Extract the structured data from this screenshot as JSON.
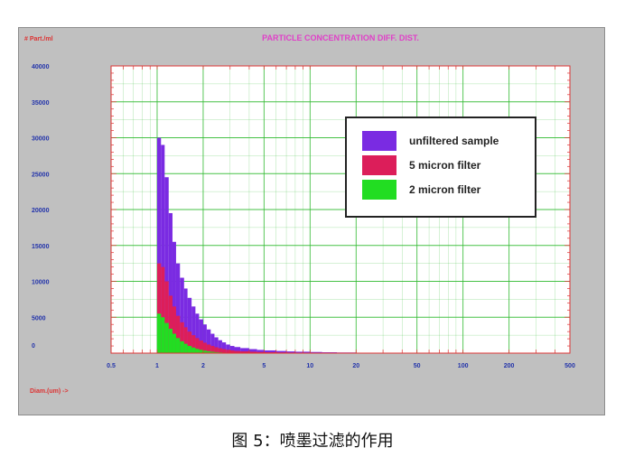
{
  "caption": "图 5：喷墨过滤的作用",
  "chart_data": {
    "type": "bar",
    "title": "PARTICLE CONCENTRATION DIFF. DIST.",
    "ylabel": "# Part./ml",
    "xlabel": "Diam.(um) ->",
    "x_scale": "log",
    "xlim": [
      0.5,
      500
    ],
    "ylim": [
      0,
      40000
    ],
    "x_tick_labels": [
      "0.5",
      "1",
      "2",
      "5",
      "10",
      "20",
      "50",
      "100",
      "200",
      "500"
    ],
    "y_tick_labels": [
      "0",
      "5000",
      "10000",
      "15000",
      "20000",
      "25000",
      "30000",
      "35000",
      "40000"
    ],
    "grid": true,
    "legend_position": "top-right",
    "x": [
      1.0,
      1.06,
      1.12,
      1.19,
      1.26,
      1.33,
      1.41,
      1.5,
      1.58,
      1.68,
      1.78,
      1.88,
      2.0,
      2.11,
      2.24,
      2.37,
      2.51,
      2.66,
      2.82,
      3.0,
      3.2,
      3.5,
      4.0,
      4.5,
      5.0,
      6.0,
      7.0,
      8.0,
      10.0,
      12.0,
      15.0,
      20.0,
      25.0,
      30.0,
      40.0
    ],
    "series": [
      {
        "name": "unfiltered sample",
        "color": "#7a2be2",
        "values": [
          30000,
          29000,
          24500,
          19500,
          15500,
          12500,
          10500,
          9000,
          7700,
          6500,
          5500,
          4700,
          4000,
          3300,
          2700,
          2200,
          1800,
          1500,
          1200,
          1000,
          850,
          700,
          560,
          450,
          380,
          300,
          240,
          200,
          160,
          120,
          90,
          60,
          40,
          25,
          12
        ]
      },
      {
        "name": "5 micron filter",
        "color": "#dc1e5a",
        "values": [
          12500,
          12000,
          10000,
          8000,
          6500,
          5200,
          4300,
          3600,
          3000,
          2500,
          2100,
          1750,
          1450,
          1200,
          1000,
          820,
          680,
          560,
          460,
          380,
          310,
          250,
          200,
          160,
          130,
          100,
          80,
          60,
          45,
          30,
          20,
          12,
          8,
          5,
          2
        ]
      },
      {
        "name": "2 micron filter",
        "color": "#22dd22",
        "values": [
          5500,
          5000,
          4200,
          3400,
          2700,
          2100,
          1650,
          1300,
          1000,
          780,
          600,
          460,
          350,
          260,
          190,
          140,
          100,
          70,
          50,
          35,
          25,
          18,
          12,
          8,
          6,
          4,
          3,
          2,
          1,
          1,
          0,
          0,
          0,
          0,
          0
        ]
      }
    ]
  },
  "colors": {
    "panel": "#c0c0c0",
    "plot_bg": "#ffffff",
    "grid": "#33bb33",
    "frame": "#dd3333",
    "title": "#e040c8",
    "axis_text": "#2233aa",
    "xlabel_text": "#dd3333"
  }
}
